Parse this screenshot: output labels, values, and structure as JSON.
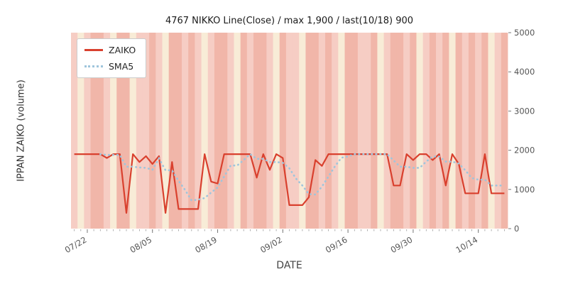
{
  "chart_data": {
    "type": "line",
    "title": "4767 NIKKO Line(Close) / max 1,900 / last(10/18) 900",
    "xlabel": "DATE",
    "ylabel": "IPPAN ZAIKO (volume)",
    "ylim": [
      0,
      5000
    ],
    "yticks": [
      0,
      1000,
      2000,
      3000,
      4000,
      5000
    ],
    "ytick_labels": [
      "0",
      "1000",
      "2000",
      "3000",
      "4000",
      "5000"
    ],
    "xtick_labels": [
      "07/22",
      "08/05",
      "08/19",
      "09/02",
      "09/16",
      "09/30",
      "10/14"
    ],
    "xtick_indices": [
      2,
      12,
      22,
      32,
      42,
      52,
      62
    ],
    "legend_position": "upper-left",
    "grid": false,
    "dates": [
      "07/18",
      "07/19",
      "07/22",
      "07/23",
      "07/24",
      "07/25",
      "07/26",
      "07/29",
      "07/30",
      "07/31",
      "08/01",
      "08/02",
      "08/05",
      "08/06",
      "08/07",
      "08/08",
      "08/09",
      "08/12",
      "08/13",
      "08/14",
      "08/15",
      "08/16",
      "08/19",
      "08/20",
      "08/21",
      "08/22",
      "08/23",
      "08/26",
      "08/27",
      "08/28",
      "08/29",
      "08/30",
      "09/02",
      "09/03",
      "09/04",
      "09/05",
      "09/06",
      "09/09",
      "09/10",
      "09/11",
      "09/12",
      "09/13",
      "09/16",
      "09/17",
      "09/18",
      "09/19",
      "09/20",
      "09/23",
      "09/24",
      "09/25",
      "09/26",
      "09/27",
      "09/30",
      "10/01",
      "10/02",
      "10/03",
      "10/04",
      "10/07",
      "10/08",
      "10/09",
      "10/10",
      "10/11",
      "10/14",
      "10/15",
      "10/16",
      "10/17",
      "10/18"
    ],
    "series": [
      {
        "name": "ZAIKO",
        "color": "#d9402e",
        "style": "solid",
        "values": [
          1900,
          1900,
          1900,
          1900,
          1900,
          1800,
          1900,
          1900,
          400,
          1900,
          1700,
          1850,
          1650,
          1850,
          400,
          1700,
          500,
          500,
          500,
          500,
          1900,
          1200,
          1150,
          1900,
          1900,
          1900,
          1900,
          1900,
          1300,
          1900,
          1500,
          1900,
          1800,
          600,
          600,
          600,
          800,
          1750,
          1600,
          1900,
          1900,
          1900,
          1900,
          1900,
          1900,
          1900,
          1900,
          1900,
          1900,
          1100,
          1100,
          1900,
          1750,
          1900,
          1900,
          1750,
          1900,
          1100,
          1900,
          1650,
          900,
          900,
          900,
          1900,
          900,
          900,
          900
        ]
      },
      {
        "name": "SMA5",
        "color": "#9fc5dc",
        "style": "dotted",
        "derived": "sma5_of_series_0"
      }
    ],
    "background": {
      "band_palette": {
        "A": "#f6cdc4",
        "B": "#f1b6a9",
        "C": "#f8ecd7"
      },
      "band_pattern": "ACABBACBBCAABACBBABACABBACBABBACBAACBBABACBBAABCABBABCABABCBABABCAB"
    },
    "annotations": {
      "max_value": "1,900",
      "last_date": "10/18",
      "last_value": "900"
    }
  }
}
